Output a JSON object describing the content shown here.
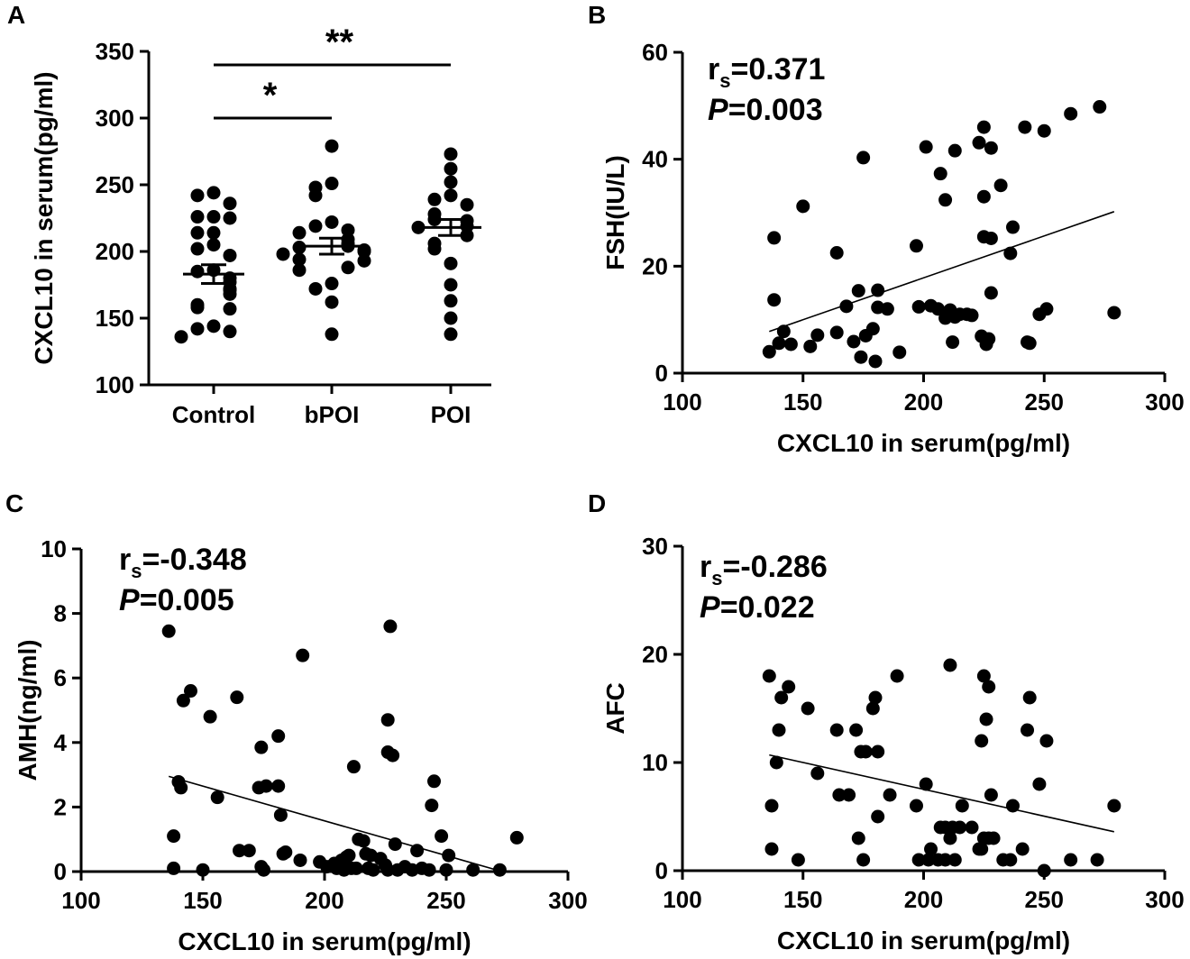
{
  "chart_data": [
    {
      "panel": "A",
      "type": "scatter",
      "subtype": "dot-plot",
      "ylabel": "CXCL10 in serum(pg/ml)",
      "ylim": [
        100,
        350
      ],
      "yticks": [
        100,
        150,
        200,
        250,
        300,
        350
      ],
      "categories": [
        "Control",
        "bPOI",
        "POI"
      ],
      "groups": [
        {
          "name": "Control",
          "values": [
            244,
            242,
            236,
            226,
            226,
            225,
            214,
            214,
            205,
            202,
            197,
            186,
            185,
            180,
            177,
            172,
            171,
            168,
            160,
            158,
            157,
            144,
            142,
            140,
            136
          ],
          "mean": 183,
          "sem": [
            176,
            190
          ]
        },
        {
          "name": "bPOI",
          "values": [
            279,
            251,
            248,
            242,
            222,
            219,
            216,
            214,
            209,
            206,
            204,
            203,
            201,
            200,
            198,
            194,
            193,
            188,
            186,
            176,
            172,
            162,
            138
          ],
          "mean": 204,
          "sem": [
            198,
            210
          ]
        },
        {
          "name": "POI",
          "values": [
            273,
            262,
            252,
            242,
            239,
            235,
            228,
            224,
            223,
            219,
            218,
            212,
            206,
            202,
            191,
            175,
            163,
            150,
            138
          ],
          "mean": 218,
          "sem": [
            212,
            224
          ]
        }
      ],
      "significance": [
        {
          "from": "Control",
          "to": "bPOI",
          "label": "*"
        },
        {
          "from": "Control",
          "to": "POI",
          "label": "**"
        }
      ]
    },
    {
      "panel": "B",
      "type": "scatter",
      "xlabel": "CXCL10 in serum(pg/ml)",
      "ylabel": "FSH(IU/L)",
      "xlim": [
        100,
        300
      ],
      "ylim": [
        0,
        60
      ],
      "xticks": [
        100,
        150,
        200,
        250,
        300
      ],
      "yticks": [
        0,
        20,
        40,
        60
      ],
      "stat": {
        "r_label": "r",
        "r_sub": "s",
        "r_value": "=0.371",
        "p_label": "P",
        "p_value": "=0.003"
      },
      "fit": {
        "x": [
          136,
          279
        ],
        "y": [
          7.8,
          30.2
        ]
      },
      "points": [
        [
          136,
          4
        ],
        [
          138,
          25.3
        ],
        [
          138,
          13.7
        ],
        [
          140,
          5.6
        ],
        [
          142,
          7.8
        ],
        [
          145,
          5.4
        ],
        [
          150,
          31.2
        ],
        [
          153,
          5
        ],
        [
          156,
          7.1
        ],
        [
          164,
          22.5
        ],
        [
          164,
          7.6
        ],
        [
          168,
          12.5
        ],
        [
          171,
          5.9
        ],
        [
          173,
          15.4
        ],
        [
          174,
          3
        ],
        [
          175,
          40.3
        ],
        [
          176,
          7
        ],
        [
          179,
          8.3
        ],
        [
          180,
          2.2
        ],
        [
          181,
          15.5
        ],
        [
          181,
          12.3
        ],
        [
          185,
          12
        ],
        [
          190,
          3.9
        ],
        [
          197,
          23.8
        ],
        [
          198,
          12.4
        ],
        [
          201,
          42.3
        ],
        [
          203,
          12.6
        ],
        [
          206,
          12
        ],
        [
          207,
          37.3
        ],
        [
          209,
          10.3
        ],
        [
          209,
          32.4
        ],
        [
          211,
          11.8
        ],
        [
          212,
          5.8
        ],
        [
          213,
          41.6
        ],
        [
          213,
          10.5
        ],
        [
          215,
          11
        ],
        [
          218,
          11
        ],
        [
          220,
          10.8
        ],
        [
          223,
          43.1
        ],
        [
          224,
          6.9
        ],
        [
          225,
          46
        ],
        [
          225,
          33
        ],
        [
          225,
          25.5
        ],
        [
          226,
          6.2
        ],
        [
          226,
          5.4
        ],
        [
          227,
          6.4
        ],
        [
          228,
          15
        ],
        [
          228,
          25.2
        ],
        [
          228,
          42.1
        ],
        [
          232,
          35.1
        ],
        [
          236,
          22.4
        ],
        [
          237,
          27.3
        ],
        [
          242,
          46
        ],
        [
          243,
          5.8
        ],
        [
          244,
          5.6
        ],
        [
          248,
          11
        ],
        [
          250,
          45.3
        ],
        [
          251,
          12
        ],
        [
          261,
          48.5
        ],
        [
          273,
          49.8
        ],
        [
          279,
          11.3
        ]
      ]
    },
    {
      "panel": "C",
      "type": "scatter",
      "xlabel": "CXCL10 in serum(pg/ml)",
      "ylabel": "AMH(ng/ml)",
      "xlim": [
        100,
        300
      ],
      "ylim": [
        0,
        10
      ],
      "xticks": [
        100,
        150,
        200,
        250,
        300
      ],
      "yticks": [
        0,
        2,
        4,
        6,
        8,
        10
      ],
      "stat": {
        "r_label": "r",
        "r_sub": "s",
        "r_value": "=-0.348",
        "p_label": "P",
        "p_value": "=0.005"
      },
      "fit": {
        "x": [
          136,
          273
        ],
        "y": [
          2.95,
          0
        ]
      },
      "points": [
        [
          136,
          7.45
        ],
        [
          138,
          1.1
        ],
        [
          138,
          0.1
        ],
        [
          140,
          2.78
        ],
        [
          141,
          2.6
        ],
        [
          142,
          5.3
        ],
        [
          145,
          5.6
        ],
        [
          150,
          0.05
        ],
        [
          153,
          4.8
        ],
        [
          156,
          2.3
        ],
        [
          164,
          5.4
        ],
        [
          165,
          0.65
        ],
        [
          169,
          0.65
        ],
        [
          173,
          2.6
        ],
        [
          174,
          3.85
        ],
        [
          174,
          0.15
        ],
        [
          175,
          0.05
        ],
        [
          176,
          2.65
        ],
        [
          181,
          2.65
        ],
        [
          181,
          4.2
        ],
        [
          182,
          1.75
        ],
        [
          183,
          0.55
        ],
        [
          184,
          0.6
        ],
        [
          190,
          0.35
        ],
        [
          191,
          6.7
        ],
        [
          198,
          0.3
        ],
        [
          201,
          0.15
        ],
        [
          204,
          0.25
        ],
        [
          205,
          0.1
        ],
        [
          207,
          0.35
        ],
        [
          208,
          0.05
        ],
        [
          209,
          0.45
        ],
        [
          210,
          0.5
        ],
        [
          211,
          0.1
        ],
        [
          212,
          3.25
        ],
        [
          213,
          0.1
        ],
        [
          214,
          1
        ],
        [
          216,
          0.95
        ],
        [
          217,
          0.55
        ],
        [
          218,
          0.1
        ],
        [
          219,
          0.5
        ],
        [
          220,
          0.05
        ],
        [
          223,
          0.4
        ],
        [
          225,
          0.2
        ],
        [
          226,
          3.7
        ],
        [
          226,
          4.7
        ],
        [
          226,
          0.05
        ],
        [
          227,
          7.6
        ],
        [
          228,
          3.6
        ],
        [
          229,
          0.85
        ],
        [
          230,
          0.05
        ],
        [
          233,
          0.15
        ],
        [
          236,
          0.05
        ],
        [
          238,
          0.65
        ],
        [
          240,
          0.1
        ],
        [
          243,
          0.05
        ],
        [
          244,
          2.05
        ],
        [
          245,
          2.8
        ],
        [
          248,
          1.1
        ],
        [
          250,
          0.05
        ],
        [
          251,
          0.5
        ],
        [
          261,
          0.05
        ],
        [
          272,
          0.05
        ],
        [
          279,
          1.05
        ]
      ]
    },
    {
      "panel": "D",
      "type": "scatter",
      "xlabel": "CXCL10 in serum(pg/ml)",
      "ylabel": "AFC",
      "xlim": [
        100,
        300
      ],
      "ylim": [
        0,
        30
      ],
      "xticks": [
        100,
        150,
        200,
        250,
        300
      ],
      "yticks": [
        0,
        10,
        20,
        30
      ],
      "stat": {
        "r_label": "r",
        "r_sub": "s",
        "r_value": "=-0.286",
        "p_label": "P",
        "p_value": "=0.022"
      },
      "fit": {
        "x": [
          136,
          279
        ],
        "y": [
          10.7,
          3.6
        ]
      },
      "points": [
        [
          136,
          18
        ],
        [
          137,
          6
        ],
        [
          137,
          2
        ],
        [
          139,
          10
        ],
        [
          140,
          13
        ],
        [
          141,
          16
        ],
        [
          144,
          17
        ],
        [
          148,
          1
        ],
        [
          152,
          15
        ],
        [
          156,
          9
        ],
        [
          164,
          13
        ],
        [
          165,
          7
        ],
        [
          169,
          7
        ],
        [
          172,
          13
        ],
        [
          173,
          3
        ],
        [
          174,
          11
        ],
        [
          175,
          1
        ],
        [
          176,
          11
        ],
        [
          179,
          15
        ],
        [
          180,
          16
        ],
        [
          181,
          11
        ],
        [
          181,
          5
        ],
        [
          186,
          7
        ],
        [
          189,
          18
        ],
        [
          197,
          6
        ],
        [
          198,
          1
        ],
        [
          201,
          8
        ],
        [
          202,
          1
        ],
        [
          203,
          2
        ],
        [
          206,
          1
        ],
        [
          207,
          4
        ],
        [
          209,
          4
        ],
        [
          209,
          1
        ],
        [
          211,
          3
        ],
        [
          211,
          19
        ],
        [
          212,
          4
        ],
        [
          213,
          1
        ],
        [
          215,
          4
        ],
        [
          216,
          6
        ],
        [
          220,
          4
        ],
        [
          223,
          2
        ],
        [
          224,
          2
        ],
        [
          224,
          12
        ],
        [
          225,
          18
        ],
        [
          225,
          3
        ],
        [
          226,
          14
        ],
        [
          227,
          17
        ],
        [
          227,
          3
        ],
        [
          228,
          7
        ],
        [
          229,
          3
        ],
        [
          233,
          1
        ],
        [
          236,
          1
        ],
        [
          237,
          6
        ],
        [
          241,
          2
        ],
        [
          243,
          13
        ],
        [
          244,
          16
        ],
        [
          248,
          8
        ],
        [
          250,
          0
        ],
        [
          251,
          12
        ],
        [
          261,
          1
        ],
        [
          272,
          1
        ],
        [
          279,
          6
        ]
      ]
    }
  ]
}
